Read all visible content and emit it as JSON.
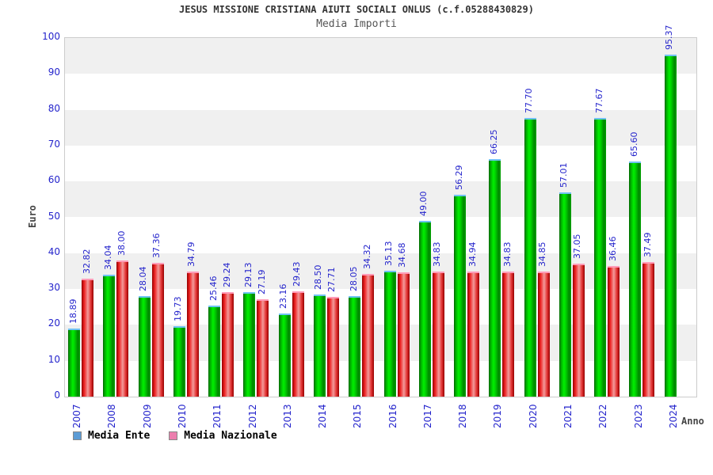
{
  "chart_data": {
    "type": "bar",
    "title": "JESUS MISSIONE CRISTIANA AIUTI SOCIALI ONLUS (c.f.05288430829)",
    "subtitle": "Media Importi",
    "xlabel": "Anno",
    "ylabel": "Euro",
    "ylim": [
      0,
      100
    ],
    "ytick_step": 10,
    "grid": "alternating-horizontal-bands",
    "legend_position": "bottom-left",
    "categories": [
      "2007",
      "2008",
      "2009",
      "2010",
      "2011",
      "2012",
      "2013",
      "2014",
      "2015",
      "2016",
      "2017",
      "2018",
      "2019",
      "2020",
      "2021",
      "2022",
      "2023",
      "2024"
    ],
    "series": [
      {
        "name": "Media Ente",
        "legend_swatch_color": "#5b9bd5",
        "bar_color": "#00cc00",
        "values": [
          18.89,
          34.04,
          28.04,
          19.73,
          25.46,
          29.13,
          23.16,
          28.5,
          28.05,
          35.13,
          49.0,
          56.29,
          66.25,
          77.7,
          57.01,
          77.67,
          65.6,
          95.37
        ]
      },
      {
        "name": "Media Nazionale",
        "legend_swatch_color": "#ec7fae",
        "bar_color": "#ee2222",
        "values": [
          32.82,
          38.0,
          37.36,
          34.79,
          29.24,
          27.19,
          29.43,
          27.71,
          34.32,
          34.68,
          34.83,
          34.94,
          34.83,
          34.85,
          37.05,
          36.46,
          37.49,
          null
        ]
      }
    ],
    "value_label_color": "#2424cc",
    "tick_label_color": "#2424cc",
    "band_color_gray": "#f0f0f0",
    "band_color_white": "#ffffff"
  }
}
